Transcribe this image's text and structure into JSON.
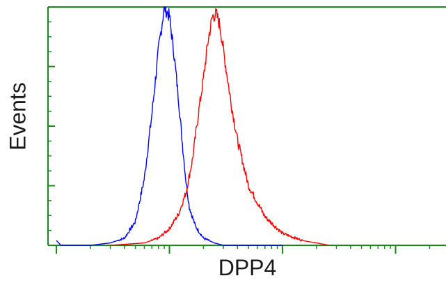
{
  "chart_data": {
    "type": "line",
    "title": "",
    "xlabel": "DPP4",
    "ylabel": "Events",
    "x_scale": "log",
    "xlim": [
      1,
      10000
    ],
    "ylim": [
      0,
      1
    ],
    "grid": false,
    "legend": "none",
    "x_major_ticks": [
      1,
      10,
      100,
      1000,
      10000
    ],
    "series": [
      {
        "color": "#0000ff",
        "x": [
          1,
          1.1,
          2,
          3,
          4,
          5,
          6,
          7,
          8,
          9,
          10,
          11,
          12,
          13,
          14,
          15,
          17,
          20,
          25,
          30,
          40,
          60,
          100
        ],
        "y": [
          0.02,
          0,
          0,
          0.01,
          0.03,
          0.1,
          0.28,
          0.55,
          0.82,
          1.0,
          0.96,
          0.8,
          0.62,
          0.43,
          0.27,
          0.16,
          0.08,
          0.03,
          0.01,
          0,
          0,
          0,
          0
        ]
      },
      {
        "color": "#ff0000",
        "x": [
          3,
          6,
          8,
          10,
          12,
          14,
          16,
          18,
          20,
          22,
          24,
          26,
          28,
          30,
          35,
          40,
          50,
          70,
          100,
          150,
          200,
          260
        ],
        "y": [
          0,
          0.01,
          0.03,
          0.07,
          0.13,
          0.22,
          0.36,
          0.55,
          0.7,
          0.86,
          0.96,
          0.97,
          0.92,
          0.82,
          0.6,
          0.44,
          0.25,
          0.12,
          0.05,
          0.02,
          0.01,
          0
        ]
      }
    ]
  }
}
